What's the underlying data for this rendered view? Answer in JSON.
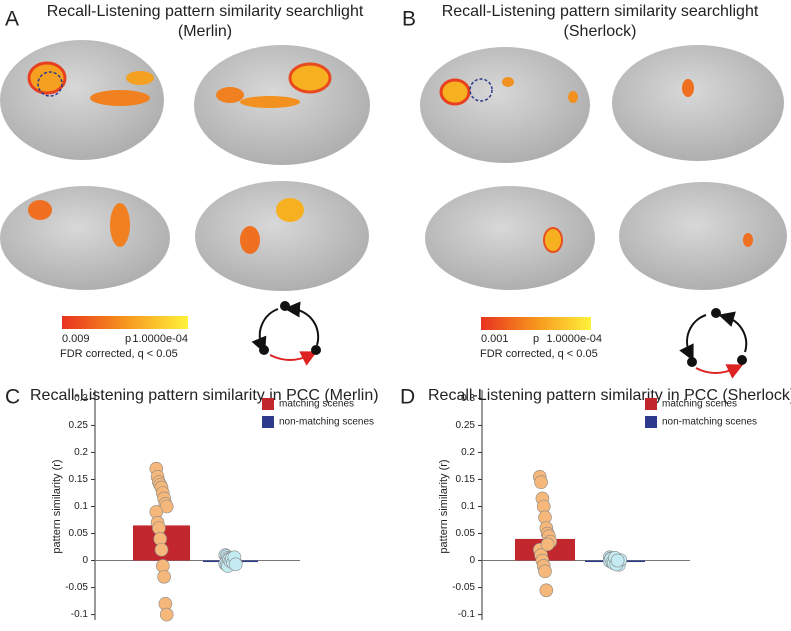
{
  "panels": [
    {
      "label": "A",
      "title": "Recall-Listening pattern similarity searchlight",
      "subtitle": "(Merlin)",
      "colorbar": {
        "min": "0.009",
        "mid": "p",
        "max": "1.0000e-04",
        "note": "FDR corrected, q < 0.05"
      }
    },
    {
      "label": "B",
      "title": "Recall-Listening pattern similarity searchlight",
      "subtitle": "(Sherlock)",
      "colorbar": {
        "min": "0.001",
        "mid": "p",
        "max": "1.0000e-04",
        "note": "FDR corrected, q < 0.05"
      }
    }
  ],
  "chart_data": [
    {
      "type": "bar",
      "label": "C",
      "title": "Recall-Listening pattern similarity in PCC (Merlin)",
      "ylabel": "pattern similarity (r)",
      "ylim": [
        -0.11,
        0.31
      ],
      "yticks": [
        -0.1,
        -0.05,
        0,
        0.05,
        0.1,
        0.15,
        0.2,
        0.25,
        0.3
      ],
      "series": [
        {
          "name": "matching scenes",
          "color": "#c1272d",
          "point_color": "#f6b87a",
          "values": [
            0.065
          ],
          "points": [
            0.17,
            0.155,
            0.145,
            0.14,
            0.135,
            0.125,
            0.115,
            0.105,
            0.1,
            0.09,
            0.07,
            0.06,
            0.04,
            0.02,
            -0.01,
            -0.03,
            -0.08,
            -0.1
          ]
        },
        {
          "name": "non-matching scenes",
          "color": "#2e3a8c",
          "point_color": "#c4ebf2",
          "values": [
            -0.002
          ],
          "points": [
            0.01,
            0.008,
            0.005,
            0.003,
            0,
            0,
            -0.002,
            -0.003,
            -0.005,
            -0.006,
            -0.008,
            -0.01,
            0.002,
            -0.001,
            0.004,
            -0.004,
            0.006,
            -0.007
          ]
        }
      ]
    },
    {
      "type": "bar",
      "label": "D",
      "title": "Recall-Listening pattern similarity in PCC (Sherlock)",
      "ylabel": "pattern similarity (r)",
      "ylim": [
        -0.11,
        0.31
      ],
      "yticks": [
        -0.1,
        -0.05,
        0,
        0.05,
        0.1,
        0.15,
        0.2,
        0.25,
        0.3
      ],
      "series": [
        {
          "name": "matching scenes",
          "color": "#c1272d",
          "point_color": "#f6b87a",
          "values": [
            0.04
          ],
          "points": [
            0.155,
            0.145,
            0.115,
            0.1,
            0.08,
            0.06,
            0.05,
            0.045,
            0.035,
            0.02,
            0.01,
            0,
            -0.01,
            -0.02,
            -0.055,
            0.03
          ]
        },
        {
          "name": "non-matching scenes",
          "color": "#2e3a8c",
          "point_color": "#c4ebf2",
          "values": [
            -0.002
          ],
          "points": [
            0.006,
            0.004,
            0.002,
            0,
            -0.002,
            -0.004,
            -0.006,
            -0.008,
            0.001,
            -0.001,
            0.003,
            -0.003,
            -0.005,
            0.005,
            -0.007,
            0
          ]
        }
      ]
    }
  ]
}
